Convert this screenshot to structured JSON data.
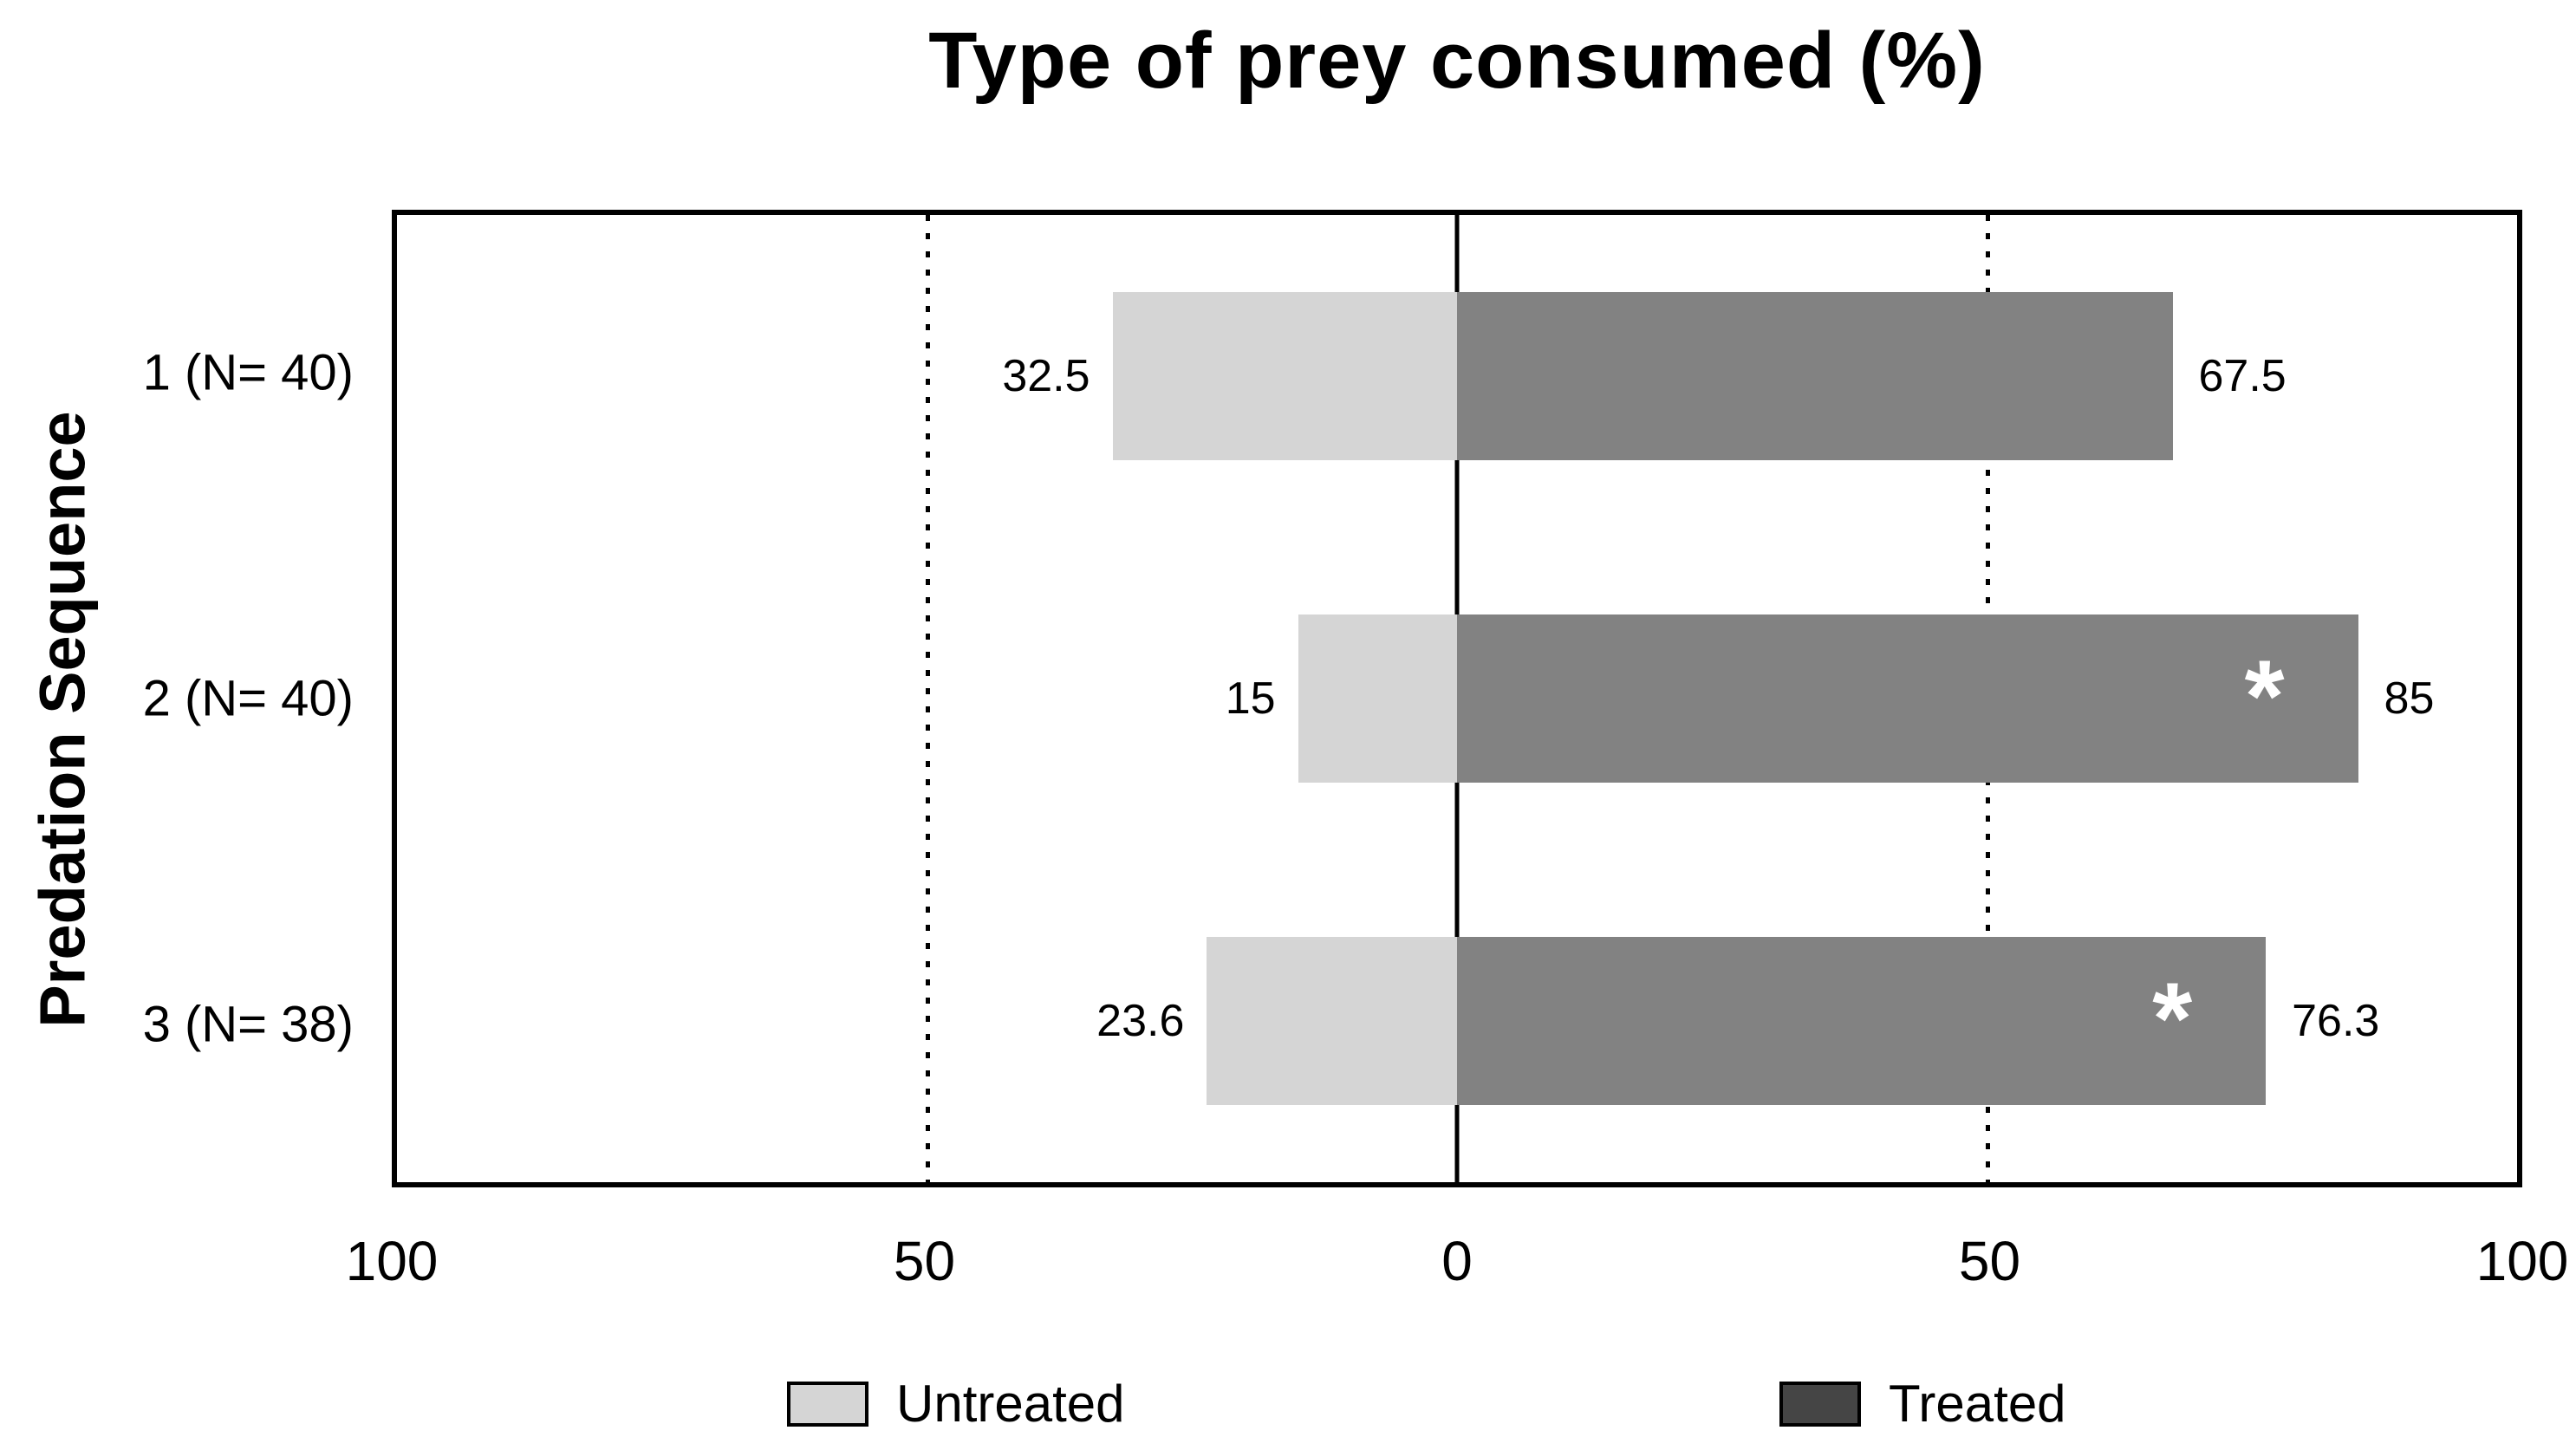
{
  "chart_data": {
    "type": "bar",
    "orientation": "horizontal-diverging",
    "title": "Type of prey consumed (%)",
    "xlabel": "",
    "ylabel": "Predation Sequence",
    "categories": [
      "1 (N= 40)",
      "2 (N= 40)",
      "3 (N= 38)"
    ],
    "series": [
      {
        "name": "Untreated",
        "direction": "left",
        "values": [
          32.5,
          15,
          23.6
        ],
        "value_labels": [
          "32.5",
          "15",
          "23.6"
        ],
        "significance_markers": [
          "",
          "",
          ""
        ]
      },
      {
        "name": "Treated",
        "direction": "right",
        "values": [
          67.5,
          85,
          76.3
        ],
        "value_labels": [
          "67.5",
          "85",
          "76.3"
        ],
        "significance_markers": [
          "",
          "*",
          "*"
        ]
      }
    ],
    "x_axis": {
      "range_each_side": [
        0,
        100
      ],
      "tick_labels": [
        "100",
        "50",
        "0",
        "50",
        "100"
      ],
      "tick_positions_percent": [
        0,
        25,
        50,
        75,
        100
      ],
      "gridlines_at_percent": [
        25,
        75
      ],
      "gridline_style": "dotted",
      "zero_line": true
    },
    "legend_position": "bottom",
    "legend": [
      {
        "label": "Untreated"
      },
      {
        "label": "Treated"
      }
    ]
  },
  "colors": {
    "background": "#ffffff",
    "text": "#000000",
    "axis": "#000000",
    "untreated_bar": "#d5d5d5",
    "treated_bar": "#828282",
    "legend_untreated_swatch": "#d5d5d5",
    "legend_treated_swatch": "#454545",
    "significance_marker": "#ffffff"
  }
}
